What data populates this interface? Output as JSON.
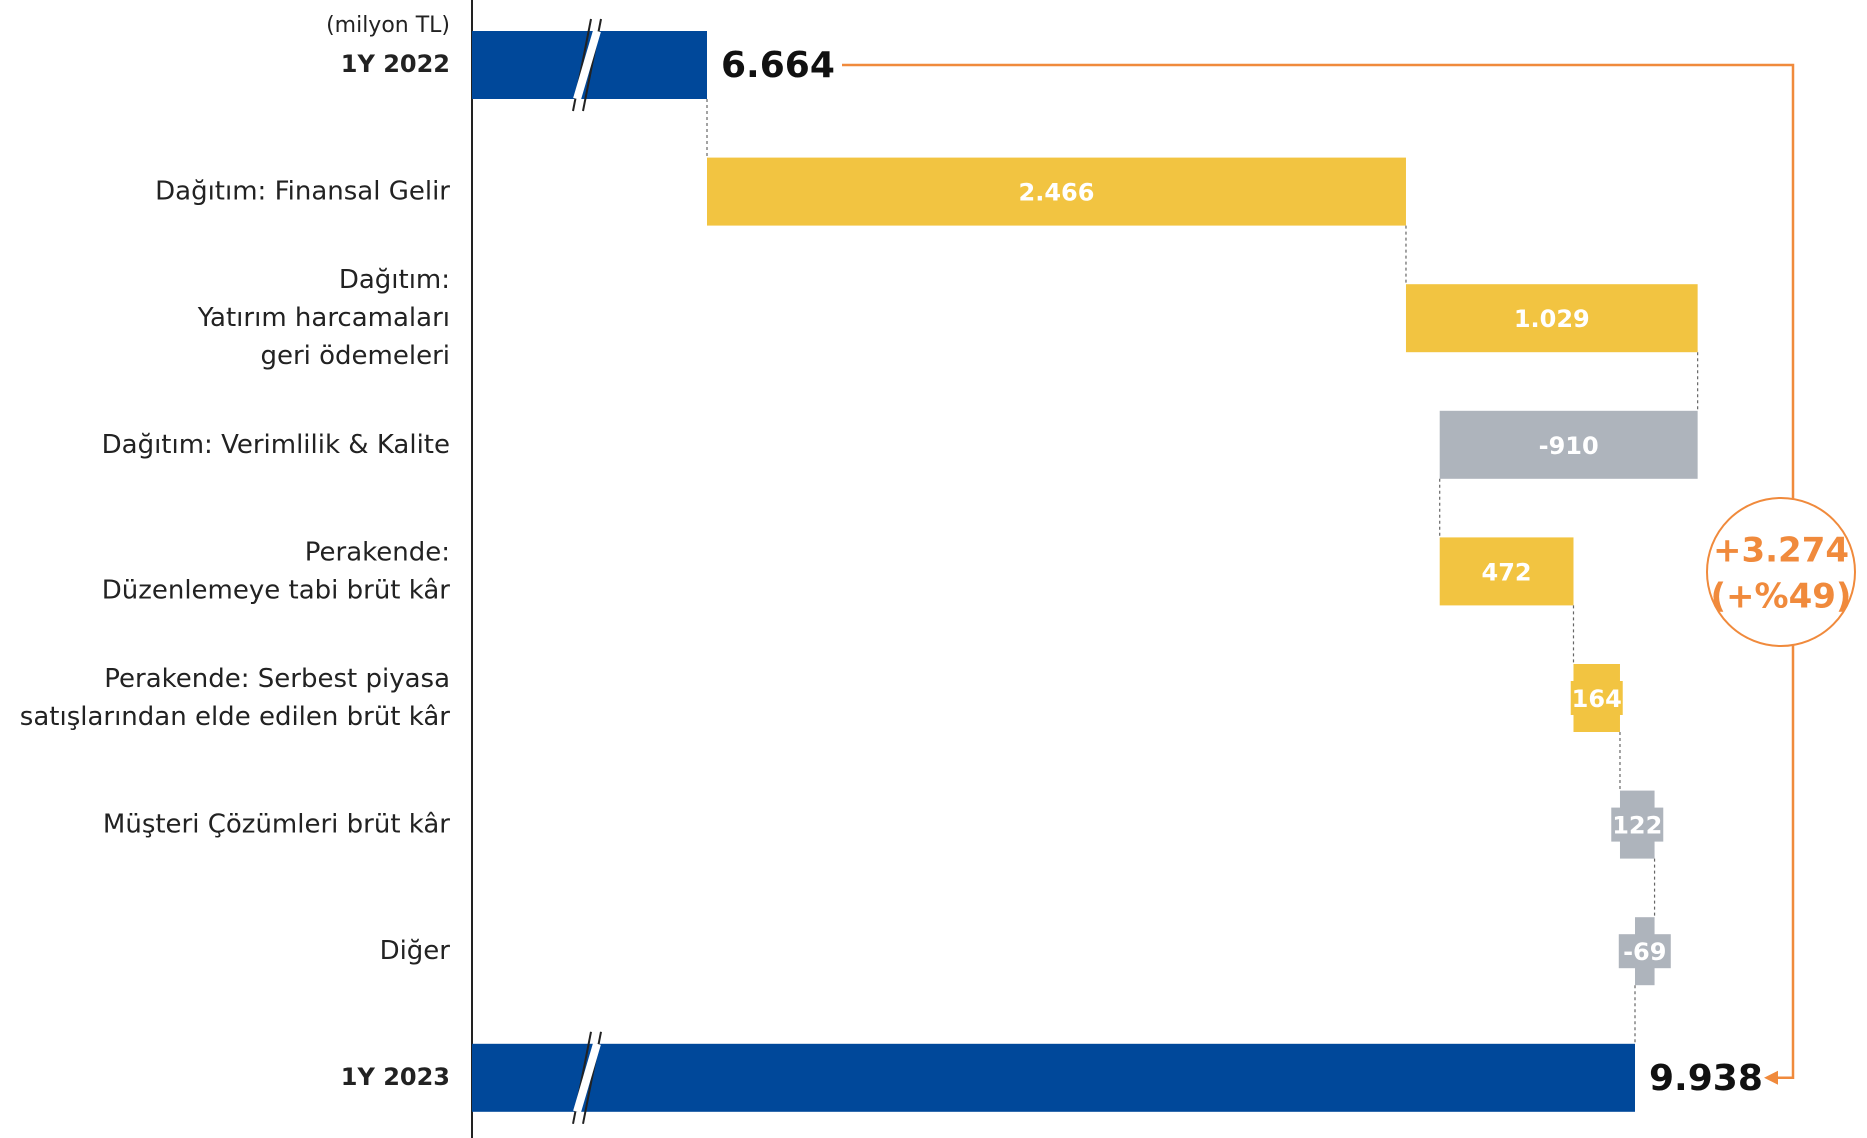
{
  "chart_data": {
    "type": "waterfall",
    "orientation": "horizontal",
    "unit": "(milyon TL)",
    "categories": [
      "1Y 2022",
      "Dağıtım: Finansal Gelir",
      "Dağıtım:\nYatırım harcamaları\ngeri ödemeleri",
      "Dağıtım: Verimlilik & Kalite",
      "Perakende:\nDüzenlemeye tabi brüt kâr",
      "Perakende: Serbest piyasa\nsatışlarından elde edilen brüt kâr",
      "Müşteri Çözümleri brüt kâr",
      "Diğer",
      "1Y 2023"
    ],
    "kinds": [
      "total",
      "delta",
      "delta",
      "delta",
      "delta",
      "delta",
      "delta",
      "delta",
      "total"
    ],
    "values": [
      6664,
      2466,
      1029,
      -910,
      472,
      164,
      122,
      -69,
      9938
    ],
    "value_labels": [
      "6.664",
      "2.466",
      "1.029",
      "-910",
      "472",
      "164",
      "122",
      "-69",
      "9.938"
    ],
    "colors": [
      "#00489a",
      "#f2c441",
      "#f2c441",
      "#aeb4bc",
      "#f2c441",
      "#f2c441",
      "#aeb4bc",
      "#aeb4bc",
      "#00489a"
    ],
    "annotation": [
      "+3.274",
      "(+%49)"
    ],
    "annotation_color": "#f08a3c"
  }
}
